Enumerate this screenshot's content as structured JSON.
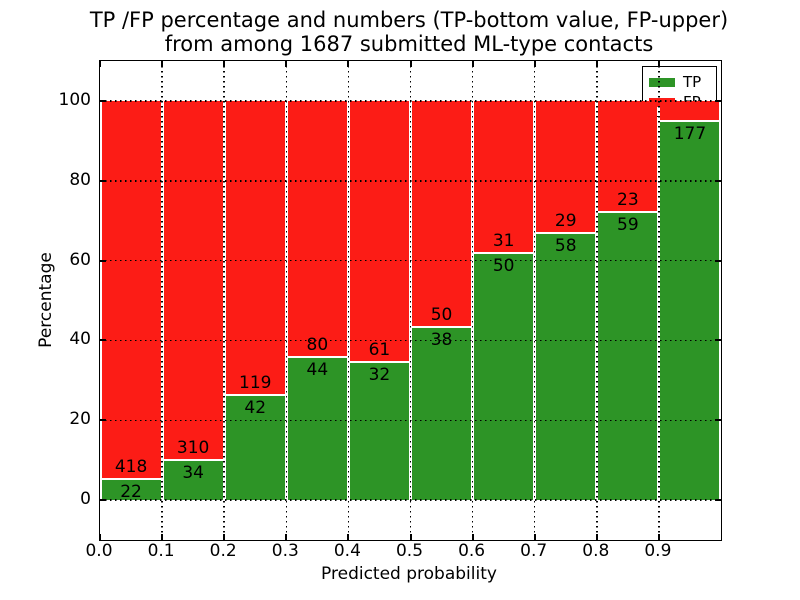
{
  "figure": {
    "background": "#ffffff"
  },
  "chart_data": {
    "type": "bar",
    "subtype": "stacked-percentage-histogram",
    "title_line1": "TP /FP percentage and numbers (TP-bottom value, FP-upper)",
    "title_line2": "from among 1687 submitted ML-type contacts",
    "xlabel": "Predicted probability",
    "ylabel": "Percentage",
    "xlim": [
      0,
      1.0
    ],
    "ylim": [
      -10,
      110
    ],
    "grid": "dotted-black-major",
    "legend_position": "upper-right",
    "x_ticks": [
      {
        "v": 0.0,
        "label": "0.0"
      },
      {
        "v": 0.1,
        "label": "0.1"
      },
      {
        "v": 0.2,
        "label": "0.2"
      },
      {
        "v": 0.3,
        "label": "0.3"
      },
      {
        "v": 0.4,
        "label": "0.4"
      },
      {
        "v": 0.5,
        "label": "0.5"
      },
      {
        "v": 0.6,
        "label": "0.6"
      },
      {
        "v": 0.7,
        "label": "0.7"
      },
      {
        "v": 0.8,
        "label": "0.8"
      },
      {
        "v": 0.9,
        "label": "0.9"
      }
    ],
    "y_ticks": [
      {
        "v": 0,
        "label": "0"
      },
      {
        "v": 20,
        "label": "20"
      },
      {
        "v": 40,
        "label": "40"
      },
      {
        "v": 60,
        "label": "60"
      },
      {
        "v": 80,
        "label": "80"
      },
      {
        "v": 100,
        "label": "100"
      }
    ],
    "grid_x": [
      0.1,
      0.2,
      0.3,
      0.4,
      0.5,
      0.6,
      0.7,
      0.8,
      0.9
    ],
    "grid_y": [
      0,
      20,
      40,
      60,
      80,
      100
    ],
    "colors": {
      "tp": "#2d9426",
      "fp": "#fc1c16",
      "bar_edge": "#ffffff",
      "grid": "#000000"
    },
    "legend": {
      "entries": [
        {
          "label": "TP",
          "color": "#2d9426"
        },
        {
          "label": "FP",
          "color": "#fc1c16"
        }
      ]
    },
    "bins": [
      {
        "x0": 0.0,
        "x1": 0.1,
        "tp": 22,
        "fp": 418,
        "tp_pct": 5.0
      },
      {
        "x0": 0.1,
        "x1": 0.2,
        "tp": 34,
        "fp": 310,
        "tp_pct": 9.88
      },
      {
        "x0": 0.2,
        "x1": 0.3,
        "tp": 42,
        "fp": 119,
        "tp_pct": 26.09
      },
      {
        "x0": 0.3,
        "x1": 0.4,
        "tp": 44,
        "fp": 80,
        "tp_pct": 35.48
      },
      {
        "x0": 0.4,
        "x1": 0.5,
        "tp": 32,
        "fp": 61,
        "tp_pct": 34.41
      },
      {
        "x0": 0.5,
        "x1": 0.6,
        "tp": 38,
        "fp": 50,
        "tp_pct": 43.18
      },
      {
        "x0": 0.6,
        "x1": 0.7,
        "tp": 50,
        "fp": 31,
        "tp_pct": 61.73
      },
      {
        "x0": 0.7,
        "x1": 0.8,
        "tp": 58,
        "fp": 29,
        "tp_pct": 66.67
      },
      {
        "x0": 0.8,
        "x1": 0.9,
        "tp": 59,
        "fp": 23,
        "tp_pct": 71.95
      },
      {
        "x0": 0.9,
        "x1": 1.0,
        "tp": 177,
        "fp": null,
        "tp_pct": 94.7
      }
    ]
  }
}
